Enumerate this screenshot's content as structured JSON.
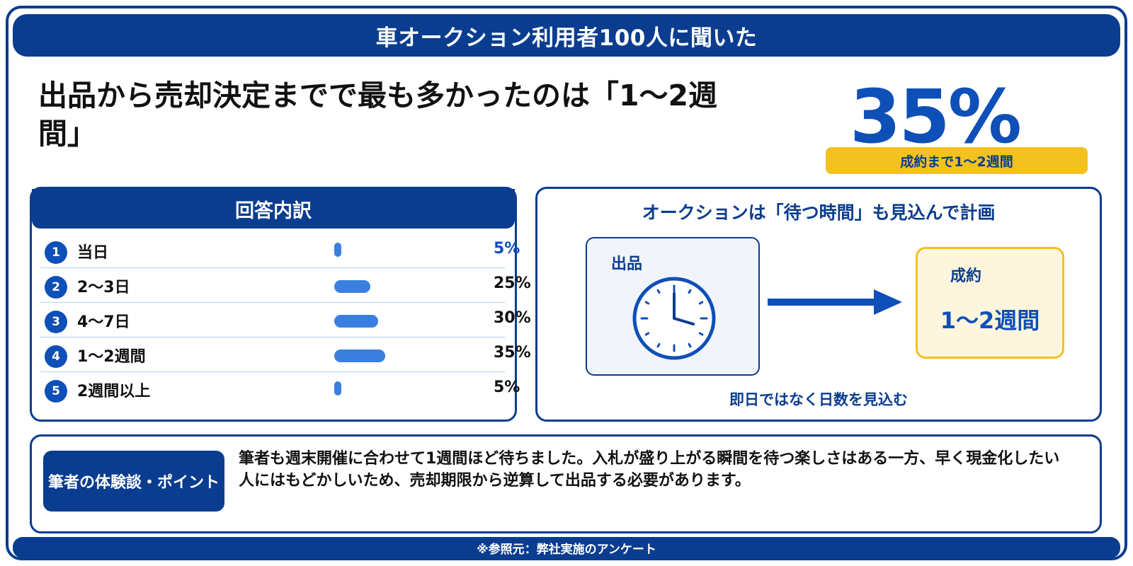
{
  "banner": {
    "title": "車オークション利用者100人に聞いた"
  },
  "headline": {
    "text": "出品から売却決定までで最も多かったのは「1〜2週間」"
  },
  "highlight": {
    "value": "35%",
    "caption": "成約まで1〜2週間",
    "accent": "#0e4fb8",
    "caption_bg": "#f3c21f"
  },
  "breakdown": {
    "title": "回答内訳"
  },
  "chart_data": {
    "type": "bar",
    "title": "回答内訳",
    "categories": [
      "当日",
      "2〜3日",
      "4〜7日",
      "1〜2週間",
      "2週間以上"
    ],
    "values": [
      5,
      25,
      30,
      35,
      5
    ],
    "value_labels": [
      "5%",
      "25%",
      "30%",
      "35%",
      "5%"
    ],
    "badges": [
      "1",
      "2",
      "3",
      "4",
      "5"
    ],
    "unit": "%",
    "orientation": "horizontal",
    "bar_color": "#3a7fe0",
    "highlight_label_color": "#0e4fb8"
  },
  "flow": {
    "title": "オークションは「待つ時間」も見込んで計画",
    "start_label": "出品",
    "start_icon": "clock-icon",
    "arrow_icon": "right-arrow-icon",
    "end_label": "成約",
    "end_value": "1〜2週間",
    "caption": "即日ではなく日数を見込む"
  },
  "note": {
    "label": "筆者の体験談・ポイント",
    "text": "筆者も週末開催に合わせて1週間ほど待ちました。入札が盛り上がる瞬間を待つ楽しさはある一方、早く現金化したい人にはもどかしいため、売却期限から逆算して出品する必要があります。"
  },
  "footer": {
    "source": "※参照元：弊社実施のアンケート"
  },
  "colors": {
    "primary": "#0a3d8f",
    "accent": "#0e4fb8",
    "yellow": "#f3c21f"
  }
}
